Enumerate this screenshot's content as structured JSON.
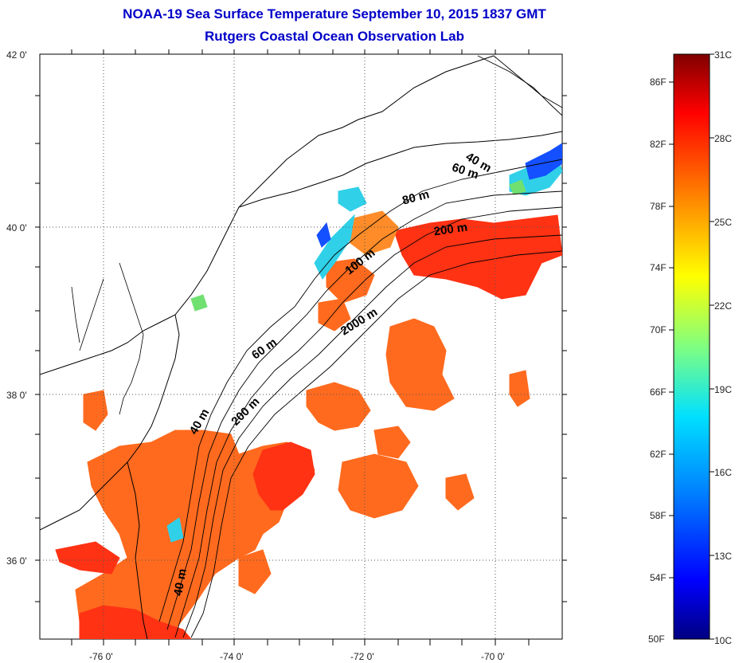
{
  "title_line1": "NOAA-19 Sea Surface Temperature September 10, 2015 1837 GMT",
  "title_line2": "Rutgers Coastal Ocean Observation Lab",
  "lat_labels": [
    "42 0'",
    "40 0'",
    "38 0'",
    "36 0'"
  ],
  "lon_labels": [
    "-76 0'",
    "-74 0'",
    "-72 0'",
    "-70 0'"
  ],
  "depth_labels": [
    "40 m",
    "60 m",
    "80 m",
    "200 m",
    "100 m",
    "2000 m",
    "60 m",
    "200 m",
    "40 m",
    "40 m"
  ],
  "colorbar": {
    "fahrenheit_labels": [
      "86F",
      "82F",
      "78F",
      "74F",
      "70F",
      "66F",
      "62F",
      "58F",
      "54F",
      "50F"
    ],
    "celsius_labels": [
      "31C",
      "28C",
      "25C",
      "22C",
      "19C",
      "16C",
      "13C",
      "10C"
    ],
    "colors": [
      "#000080",
      "#0000ff",
      "#0080ff",
      "#00ffff",
      "#80ff80",
      "#ffff00",
      "#ff8000",
      "#ff0000",
      "#800000"
    ]
  },
  "sst_colors": {
    "warm": "#ff6a1e",
    "hot": "#ff3214",
    "orange": "#ff8c28",
    "cool_cyan": "#30d0e8",
    "cool_blue": "#1450ff",
    "green": "#70e070"
  },
  "map_colors": {
    "land": "#ffffff",
    "coast": "#000000",
    "grid": "#555555"
  }
}
